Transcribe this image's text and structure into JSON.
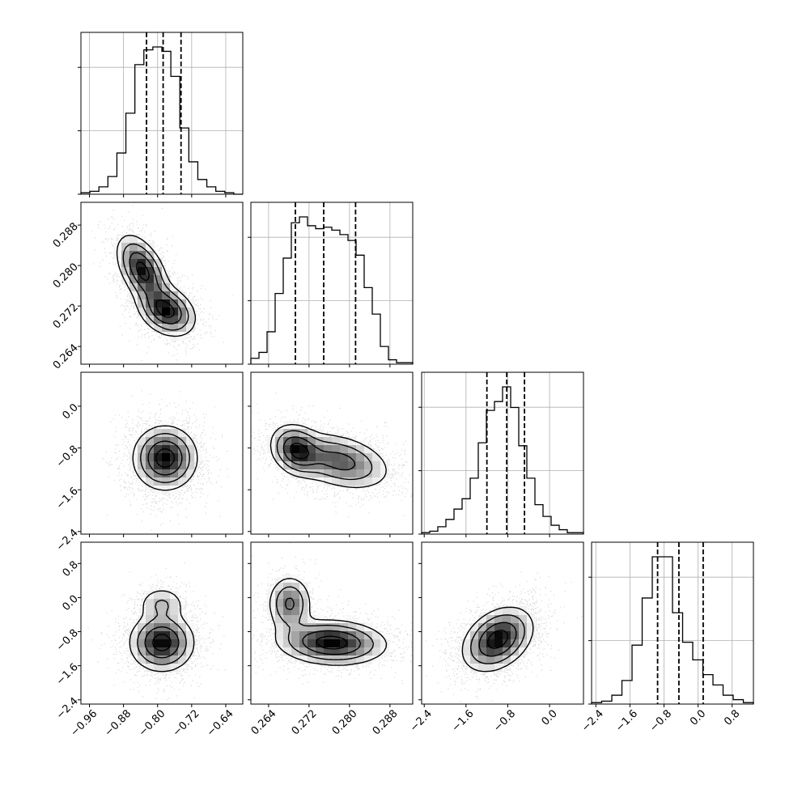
{
  "chart_data": {
    "type": "corner",
    "title": "",
    "parameters": [
      {
        "name": "",
        "quantiles": [
          -0.826,
          -0.787,
          -0.745
        ],
        "xlim": [
          -0.98,
          -0.6
        ],
        "xticks": [
          "−0.96",
          "−0.88",
          "−0.80",
          "−0.72",
          "−0.64"
        ],
        "tick_values": [
          -0.96,
          -0.88,
          -0.8,
          -0.72,
          -0.64
        ]
      },
      {
        "name": "",
        "quantiles": [
          0.2693,
          0.2749,
          0.2812
        ],
        "xlim": [
          0.2605,
          0.2925
        ],
        "xticks": [
          "0.264",
          "0.272",
          "0.280",
          "0.288"
        ],
        "tick_values": [
          0.264,
          0.272,
          0.28,
          0.288
        ]
      },
      {
        "name": "",
        "quantiles": [
          -1.2,
          -0.82,
          -0.48
        ],
        "xlim": [
          -2.45,
          0.65
        ],
        "xticks": [
          "−2.4",
          "−1.6",
          "−0.8",
          "0.0"
        ],
        "tick_values": [
          -2.4,
          -1.6,
          -0.8,
          0.0
        ]
      },
      {
        "name": "",
        "quantiles": [
          -0.95,
          -0.45,
          0.12
        ],
        "xlim": [
          -2.5,
          1.3
        ],
        "xticks": [
          "−2.4",
          "−1.6",
          "−0.8",
          "0.0",
          "0.8"
        ],
        "tick_values": [
          -2.4,
          -1.6,
          -0.8,
          0.0,
          0.8
        ]
      }
    ],
    "row_tick_labels": [
      [],
      [
        "0.264",
        "0.272",
        "0.280",
        "0.288"
      ],
      [
        "−2.4",
        "−1.6",
        "−0.8",
        "0.0"
      ],
      [
        "−2.4",
        "−1.6",
        "−0.8",
        "0.0",
        "0.8"
      ]
    ],
    "histograms": [
      {
        "param": 0,
        "counts": [
          1,
          2,
          5,
          12,
          28,
          55,
          88,
          98,
          100,
          97,
          80,
          45,
          22,
          10,
          5,
          2,
          1,
          0
        ]
      },
      {
        "param": 1,
        "counts": [
          4,
          8,
          22,
          48,
          72,
          96,
          100,
          94,
          92,
          93,
          91,
          88,
          84,
          74,
          52,
          34,
          12,
          3,
          1,
          1
        ]
      },
      {
        "param": 2,
        "counts": [
          1,
          2,
          5,
          10,
          17,
          24,
          38,
          62,
          84,
          90,
          100,
          86,
          60,
          38,
          20,
          12,
          6,
          3,
          1,
          1
        ]
      },
      {
        "param": 3,
        "counts": [
          1,
          2,
          6,
          16,
          40,
          72,
          100,
          100,
          62,
          42,
          30,
          20,
          13,
          6,
          3,
          1
        ]
      }
    ],
    "hist2d": [
      {
        "row": 1,
        "col": 0,
        "corr": -0.45
      },
      {
        "row": 2,
        "col": 0,
        "corr": 0.02
      },
      {
        "row": 2,
        "col": 1,
        "corr": -0.35
      },
      {
        "row": 3,
        "col": 0,
        "corr": 0.0
      },
      {
        "row": 3,
        "col": 1,
        "corr": -0.15
      },
      {
        "row": 3,
        "col": 2,
        "corr": 0.35
      }
    ],
    "grid": true,
    "legend": "none"
  },
  "colors": {
    "background": "#ffffff",
    "axis": "#000000",
    "grid": "#b0b0b0",
    "points": "#555555",
    "density_dark": "#000000",
    "contour": "#000000"
  }
}
